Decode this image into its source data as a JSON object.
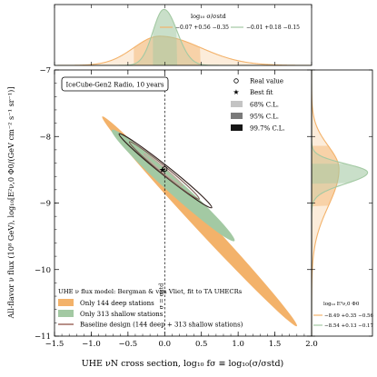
{
  "chart_data": [
    {
      "type": "scatter",
      "panel": "main",
      "xlabel": "UHE νN cross section, log₁₀ fσ ≡ log₁₀(σ/σstd)",
      "ylabel": "All-flavor ν flux (10⁸ GeV), log₁₀[E²ν,0 Φ0/(GeV cm⁻² s⁻¹ sr⁻¹)]",
      "xlim": [
        -1.5,
        2.0
      ],
      "ylim": [
        -11.0,
        -7.0
      ],
      "xticks": [
        -1.5,
        -1.0,
        -0.5,
        0.0,
        0.5,
        1.0,
        1.5,
        2.0
      ],
      "xtick_labels": [
        "−1.5",
        "−1.0",
        "−0.5",
        "0.0",
        "0.5",
        "1.0",
        "1.5",
        "2.0"
      ],
      "yticks": [
        -11,
        -10,
        -9,
        -8,
        -7
      ],
      "ytick_labels": [
        "−11",
        "−10",
        "−9",
        "−8",
        "−7"
      ],
      "title_box": "IceCube-Gen2 Radio, 10 years",
      "vline_x": 0.0,
      "vline_label": "σ = σstd",
      "real_value": {
        "x": 0.0,
        "y": -8.49
      },
      "best_fit": {
        "x": -0.03,
        "y": -8.5
      },
      "legend_markers": [
        {
          "label": "Real value",
          "marker": "open-circle"
        },
        {
          "label": "Best fit",
          "marker": "star"
        },
        {
          "label": "68% C.L.",
          "color": "#c4c4c4"
        },
        {
          "label": "95% C.L.",
          "color": "#7a7a7a"
        },
        {
          "label": "99.7% C.L.",
          "color": "#161616"
        }
      ],
      "model_title": "UHE ν flux model: Bergman & van Vliet, fit to TA UHECRs",
      "legend_series": [
        {
          "label": "Only 144 deep stations",
          "color": "#f3b26a"
        },
        {
          "label": "Only 313 shallow stations",
          "color": "#a3c9a3"
        },
        {
          "label": "Baseline design (144 deep + 313 shallow stations)",
          "color": "#8c4d42"
        }
      ],
      "series": [
        {
          "name": "Only 144 deep stations",
          "region": {
            "x1": -0.85,
            "y1": -7.7,
            "x2": 1.8,
            "y2": -10.85,
            "width": 0.14
          }
        },
        {
          "name": "Only 313 shallow stations",
          "region": {
            "x1": -0.72,
            "y1": -7.9,
            "x2": 0.95,
            "y2": -9.57,
            "width": 0.15
          }
        },
        {
          "name": "Baseline design (144 deep + 313 shallow stations)",
          "contours": [
            {
              "level": "68% C.L.",
              "x1": -0.28,
              "y1": -8.26,
              "x2": 0.24,
              "y2": -8.74
            },
            {
              "level": "95% C.L.",
              "x1": -0.48,
              "y1": -8.08,
              "x2": 0.47,
              "y2": -8.94
            },
            {
              "level": "99.7% C.L.",
              "x1": -0.62,
              "y1": -7.96,
              "x2": 0.64,
              "y2": -9.07
            }
          ]
        }
      ]
    },
    {
      "type": "area",
      "panel": "top",
      "ylabel": "Likelihood",
      "xlim": [
        -1.5,
        2.0
      ],
      "legend_title": "log₁₀ σ/σstd",
      "series": [
        {
          "name": "−0.07 +0.56 −0.35",
          "color": "#f3b26a",
          "peak_x": -0.07,
          "band": [
            -0.42,
            0.49
          ],
          "sigma_low": 0.35,
          "sigma_high": 0.56
        },
        {
          "name": "−0.01 +0.18 −0.15",
          "color": "#a3c9a3",
          "peak_x": -0.01,
          "band": [
            -0.16,
            0.17
          ],
          "sigma_low": 0.15,
          "sigma_high": 0.18
        }
      ]
    },
    {
      "type": "area",
      "panel": "right",
      "ylim": [
        -11.0,
        -7.0
      ],
      "legend_title": "log₁₀ E²ν,0 Φ0",
      "series": [
        {
          "name": "−8.49 +0.35 −0.56",
          "color": "#f3b26a",
          "peak_y": -8.49,
          "band": [
            -9.05,
            -8.14
          ],
          "sigma_low": 0.56,
          "sigma_high": 0.35
        },
        {
          "name": "−8.54 +0.13 −0.17",
          "color": "#a3c9a3",
          "peak_y": -8.54,
          "band": [
            -8.71,
            -8.41
          ],
          "sigma_low": 0.17,
          "sigma_high": 0.13
        }
      ]
    }
  ]
}
